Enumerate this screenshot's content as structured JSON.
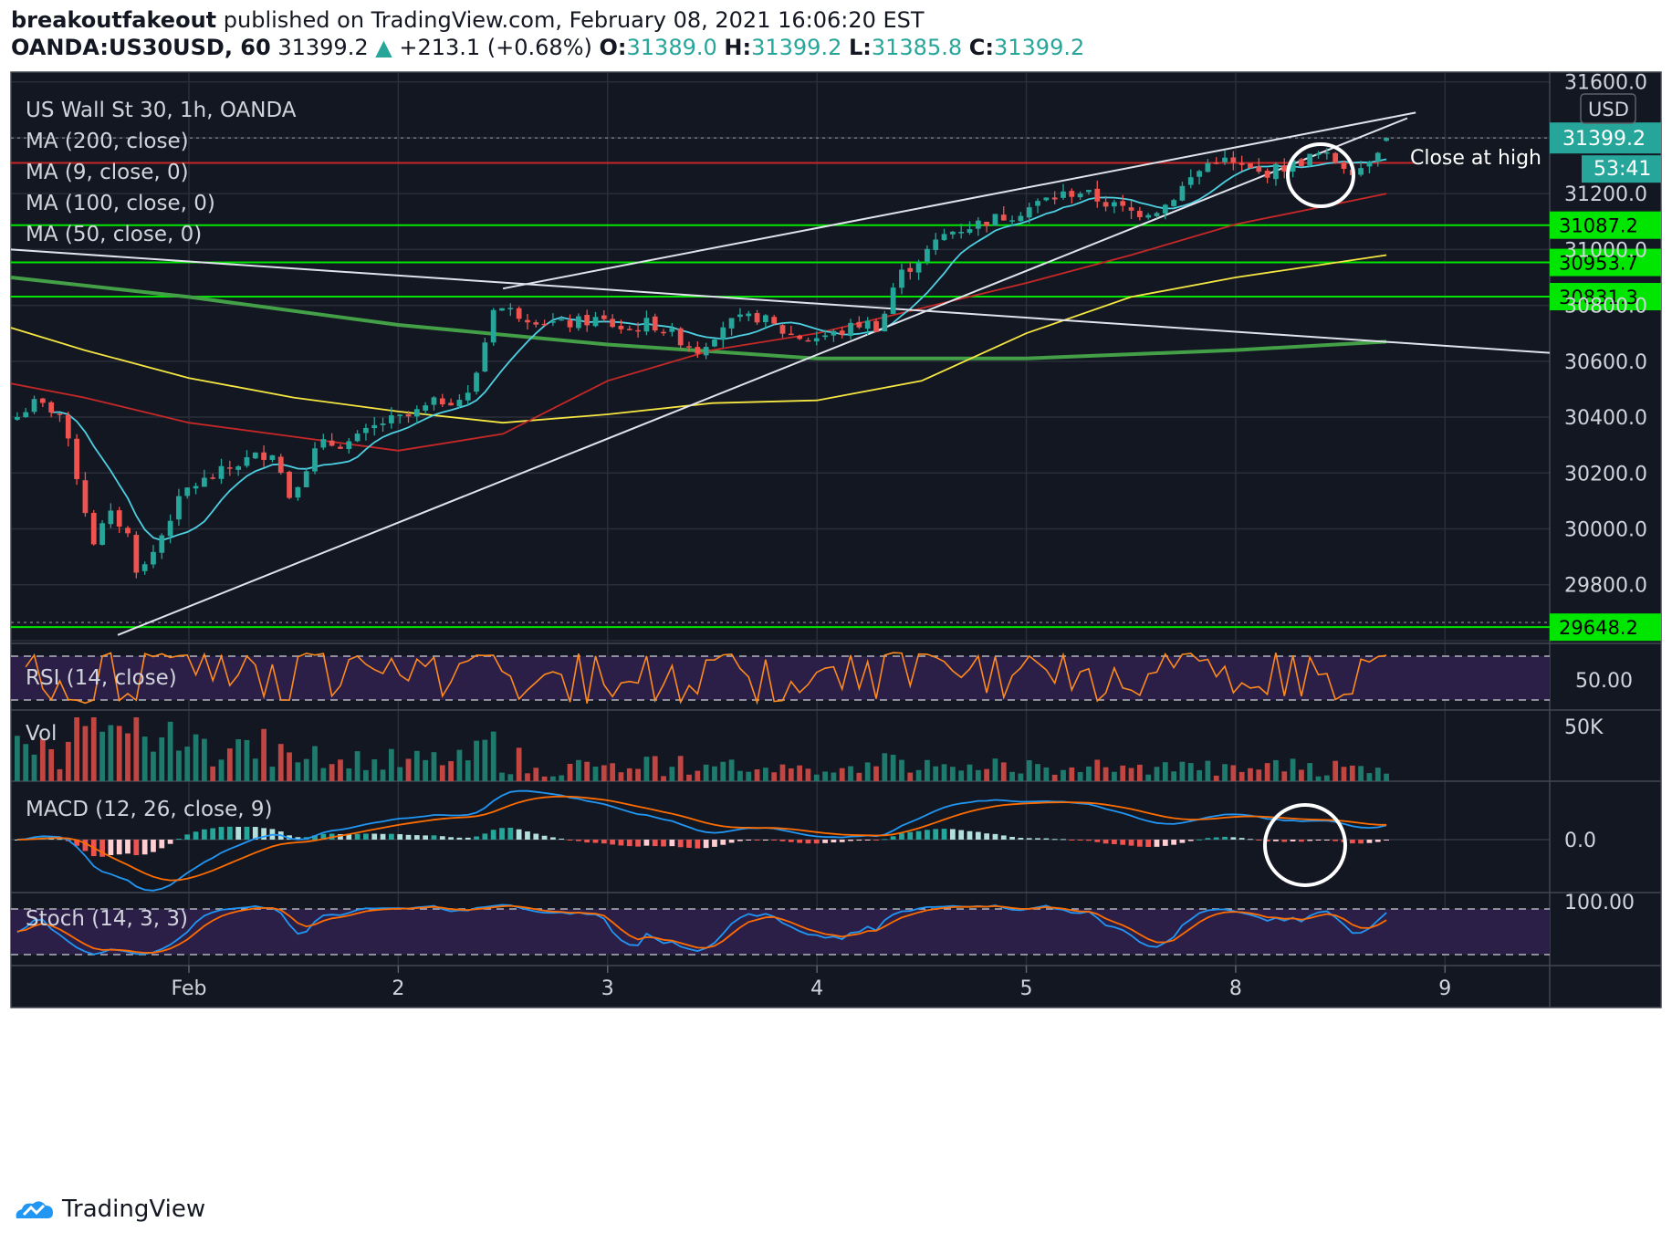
{
  "header": {
    "author": "breakoutfakeout",
    "published_text": "published on TradingView.com, February 08, 2021 16:06:20 EST",
    "symbol": "OANDA:US30USD, 60",
    "last": "31399.2",
    "change": "+213.1 (+0.68%)",
    "o_label": "O:",
    "o_value": "31389.0",
    "h_label": "H:",
    "h_value": "31399.2",
    "l_label": "L:",
    "l_value": "31385.8",
    "c_label": "C:",
    "c_value": "31399.2"
  },
  "legend": {
    "title": "US Wall St 30, 1h, OANDA",
    "items": [
      "MA (200, close)",
      "MA (9, close, 0)",
      "MA (100, close, 0)",
      "MA (50, close, 0)"
    ]
  },
  "annotation": "Close at high",
  "axis_unit": "USD",
  "countdown": "53:41",
  "footer": {
    "brand": "TradingView"
  },
  "colors": {
    "bg": "#131722",
    "up": "#26a69a",
    "down": "#ef5350",
    "grid": "#2a2e39",
    "ma200": "#43a047",
    "ma100": "#f5e642",
    "ma50": "#c62828",
    "ma9": "#4dd0e1",
    "hline_green": "#00e600",
    "hline_red": "#c62828",
    "rsi": "#ff8a1e",
    "macd": "#2196f3",
    "signal": "#ff6d00",
    "stoch_k": "#2196f3",
    "stoch_d": "#ff6d00",
    "band": "#2b1e47"
  },
  "chart_data": {
    "type": "candlestick",
    "title": "US Wall St 30, 1h, OANDA",
    "x_ticks": [
      {
        "label": "Feb",
        "t": 0
      },
      {
        "label": "2",
        "t": 1
      },
      {
        "label": "3",
        "t": 2
      },
      {
        "label": "4",
        "t": 3
      },
      {
        "label": "5",
        "t": 4
      },
      {
        "label": "8",
        "t": 5
      },
      {
        "label": "9",
        "t": 6
      }
    ],
    "x_range": [
      -0.85,
      6.5
    ],
    "price_axis": {
      "ticks": [
        31600,
        31400,
        31200,
        31000,
        30800,
        30600,
        30400,
        30200,
        30000,
        29800,
        29600
      ],
      "range": [
        29590,
        31635
      ]
    },
    "horizontal_levels": [
      {
        "value": 31087.2,
        "label": "31087.2",
        "color": "green"
      },
      {
        "value": 30953.7,
        "label": "30953.7",
        "color": "green"
      },
      {
        "value": 30831.3,
        "label": "30831.3",
        "color": "green"
      },
      {
        "value": 29648.2,
        "label": "29648.2",
        "color": "green"
      },
      {
        "value": 31310,
        "label": "",
        "color": "red"
      }
    ],
    "last_price": {
      "value": 31399.2,
      "label": "31399.2"
    },
    "price_points": [
      {
        "t": -0.85,
        "p": 30380
      },
      {
        "t": -0.75,
        "p": 30450
      },
      {
        "t": -0.62,
        "p": 30420
      },
      {
        "t": -0.52,
        "p": 30150
      },
      {
        "t": -0.46,
        "p": 29950
      },
      {
        "t": -0.38,
        "p": 30050
      },
      {
        "t": -0.3,
        "p": 30000
      },
      {
        "t": -0.24,
        "p": 29830
      },
      {
        "t": -0.16,
        "p": 29930
      },
      {
        "t": -0.08,
        "p": 30060
      },
      {
        "t": 0.0,
        "p": 30150
      },
      {
        "t": 0.1,
        "p": 30180
      },
      {
        "t": 0.25,
        "p": 30240
      },
      {
        "t": 0.4,
        "p": 30280
      },
      {
        "t": 0.48,
        "p": 30120
      },
      {
        "t": 0.62,
        "p": 30300
      },
      {
        "t": 0.78,
        "p": 30310
      },
      {
        "t": 0.92,
        "p": 30380
      },
      {
        "t": 1.05,
        "p": 30400
      },
      {
        "t": 1.2,
        "p": 30460
      },
      {
        "t": 1.33,
        "p": 30470
      },
      {
        "t": 1.4,
        "p": 30620
      },
      {
        "t": 1.45,
        "p": 30800
      },
      {
        "t": 1.62,
        "p": 30760
      },
      {
        "t": 1.78,
        "p": 30730
      },
      {
        "t": 1.95,
        "p": 30750
      },
      {
        "t": 2.1,
        "p": 30710
      },
      {
        "t": 2.2,
        "p": 30740
      },
      {
        "t": 2.3,
        "p": 30700
      },
      {
        "t": 2.43,
        "p": 30640
      },
      {
        "t": 2.55,
        "p": 30730
      },
      {
        "t": 2.72,
        "p": 30760
      },
      {
        "t": 2.85,
        "p": 30700
      },
      {
        "t": 2.95,
        "p": 30680
      },
      {
        "t": 3.1,
        "p": 30700
      },
      {
        "t": 3.22,
        "p": 30740
      },
      {
        "t": 3.3,
        "p": 30720
      },
      {
        "t": 3.38,
        "p": 30900
      },
      {
        "t": 3.48,
        "p": 30960
      },
      {
        "t": 3.62,
        "p": 31060
      },
      {
        "t": 3.8,
        "p": 31100
      },
      {
        "t": 3.95,
        "p": 31130
      },
      {
        "t": 4.1,
        "p": 31180
      },
      {
        "t": 4.25,
        "p": 31210
      },
      {
        "t": 4.4,
        "p": 31160
      },
      {
        "t": 4.52,
        "p": 31130
      },
      {
        "t": 4.65,
        "p": 31150
      },
      {
        "t": 4.78,
        "p": 31250
      },
      {
        "t": 4.9,
        "p": 31330
      },
      {
        "t": 5.0,
        "p": 31300
      },
      {
        "t": 5.12,
        "p": 31270
      },
      {
        "t": 5.25,
        "p": 31300
      },
      {
        "t": 5.4,
        "p": 31340
      },
      {
        "t": 5.5,
        "p": 31310
      },
      {
        "t": 5.58,
        "p": 31280
      },
      {
        "t": 5.66,
        "p": 31350
      },
      {
        "t": 5.72,
        "p": 31399
      }
    ],
    "moving_averages": [
      {
        "name": "MA (200, close)",
        "color": "ma200",
        "points": [
          [
            -0.85,
            30900
          ],
          [
            0,
            30830
          ],
          [
            1,
            30730
          ],
          [
            2,
            30660
          ],
          [
            3,
            30610
          ],
          [
            4,
            30610
          ],
          [
            5,
            30640
          ],
          [
            5.72,
            30670
          ]
        ]
      },
      {
        "name": "MA (100, close, 0)",
        "color": "ma100",
        "points": [
          [
            -0.85,
            30720
          ],
          [
            -0.5,
            30640
          ],
          [
            0,
            30540
          ],
          [
            0.5,
            30470
          ],
          [
            1,
            30420
          ],
          [
            1.5,
            30380
          ],
          [
            2,
            30410
          ],
          [
            2.5,
            30450
          ],
          [
            3,
            30460
          ],
          [
            3.5,
            30530
          ],
          [
            4,
            30700
          ],
          [
            4.5,
            30830
          ],
          [
            5,
            30900
          ],
          [
            5.72,
            30980
          ]
        ]
      },
      {
        "name": "MA (50, close, 0)",
        "color": "ma50",
        "points": [
          [
            -0.85,
            30520
          ],
          [
            -0.5,
            30470
          ],
          [
            0,
            30380
          ],
          [
            0.5,
            30330
          ],
          [
            1,
            30280
          ],
          [
            1.5,
            30340
          ],
          [
            2,
            30530
          ],
          [
            2.5,
            30640
          ],
          [
            3,
            30700
          ],
          [
            3.5,
            30790
          ],
          [
            4,
            30880
          ],
          [
            4.5,
            30980
          ],
          [
            5,
            31090
          ],
          [
            5.72,
            31200
          ]
        ]
      },
      {
        "name": "MA (9, close, 0)",
        "color": "ma9",
        "smooth": true
      }
    ],
    "trendlines": [
      {
        "points": [
          [
            -0.34,
            29620
          ],
          [
            5.82,
            31470
          ]
        ]
      },
      {
        "points": [
          [
            1.5,
            30860
          ],
          [
            5.86,
            31490
          ]
        ]
      },
      {
        "points": [
          [
            -0.85,
            31000
          ],
          [
            6.5,
            30630
          ]
        ]
      }
    ]
  }
}
